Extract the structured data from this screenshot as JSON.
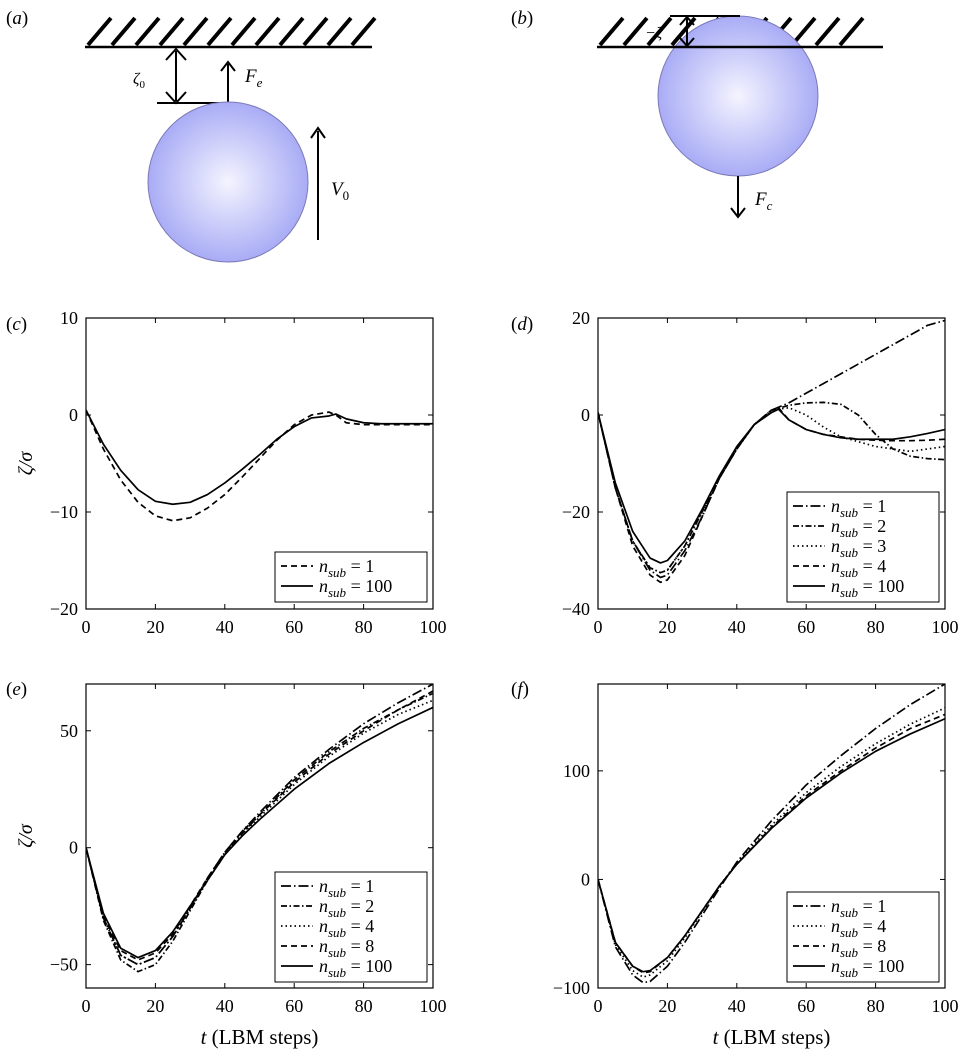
{
  "panels": {
    "a": {
      "letter": "a",
      "zeta0_label": "ζ",
      "zeta0_sub": "0",
      "force_label": "F",
      "force_sub": "e",
      "velocity_label": "V",
      "velocity_sub": "0"
    },
    "b": {
      "letter": "b",
      "zeta_label": "−ζ",
      "force_label": "F",
      "force_sub": "c"
    }
  },
  "common": {
    "xlabel_var": "t",
    "xlabel_unit": "(LBM steps)",
    "ylabel": "ζ/σ",
    "legend_var": "n",
    "legend_sub": "sub",
    "colors": {
      "line": "#000000",
      "sphere_center": "#f4f4ff",
      "sphere_edge": "#a9acf5",
      "sphere_stroke": "#7a7ab8"
    }
  },
  "chart_data": [
    {
      "panel": "c",
      "type": "line",
      "xlim": [
        0,
        100
      ],
      "ylim": [
        -20,
        10
      ],
      "xticks": [
        0,
        20,
        40,
        60,
        80,
        100
      ],
      "yticks": [
        -20,
        -10,
        0,
        10
      ],
      "show_ylabel": true,
      "show_xlabel": false,
      "series": [
        {
          "name": "1",
          "style": "dashed",
          "x": [
            0,
            5,
            10,
            15,
            20,
            25,
            30,
            35,
            40,
            45,
            50,
            55,
            60,
            65,
            70,
            72,
            75,
            80,
            85,
            90,
            95,
            100
          ],
          "y": [
            0.5,
            -3.5,
            -6.7,
            -9.0,
            -10.4,
            -10.9,
            -10.6,
            -9.6,
            -8.2,
            -6.4,
            -4.5,
            -2.6,
            -1.0,
            0.0,
            0.3,
            0.0,
            -0.8,
            -1.0,
            -1.0,
            -1.0,
            -1.0,
            -1.0
          ]
        },
        {
          "name": "100",
          "style": "solid",
          "x": [
            0,
            5,
            10,
            15,
            20,
            25,
            30,
            35,
            40,
            45,
            50,
            55,
            60,
            65,
            70,
            72,
            75,
            80,
            85,
            90,
            95,
            100
          ],
          "y": [
            0.5,
            -3.0,
            -5.7,
            -7.7,
            -8.9,
            -9.2,
            -9.0,
            -8.2,
            -7.0,
            -5.6,
            -4.1,
            -2.5,
            -1.2,
            -0.3,
            -0.1,
            0.1,
            -0.4,
            -0.8,
            -0.9,
            -0.9,
            -0.9,
            -0.9
          ]
        }
      ]
    },
    {
      "panel": "d",
      "type": "line",
      "xlim": [
        0,
        100
      ],
      "ylim": [
        -40,
        20
      ],
      "xticks": [
        0,
        20,
        40,
        60,
        80,
        100
      ],
      "yticks": [
        -40,
        -20,
        0,
        20
      ],
      "show_ylabel": false,
      "show_xlabel": false,
      "series": [
        {
          "name": "1",
          "style": "dashdot_long",
          "x": [
            0,
            5,
            10,
            15,
            18,
            20,
            25,
            30,
            35,
            40,
            45,
            50,
            55,
            60,
            65,
            70,
            75,
            80,
            85,
            90,
            95,
            100
          ],
          "y": [
            0.5,
            -15,
            -26,
            -32,
            -33.5,
            -33,
            -28,
            -21,
            -13,
            -7,
            -2,
            1,
            2.5,
            4.5,
            6.5,
            8.5,
            10.5,
            12.5,
            14.5,
            16.5,
            18.5,
            19.5
          ]
        },
        {
          "name": "2",
          "style": "dashdot",
          "x": [
            0,
            5,
            10,
            15,
            18,
            20,
            25,
            30,
            35,
            40,
            45,
            50,
            55,
            60,
            65,
            70,
            75,
            80,
            85,
            90,
            95,
            100
          ],
          "y": [
            0.5,
            -15,
            -26,
            -31.5,
            -32.5,
            -32,
            -27,
            -20,
            -13,
            -7,
            -2,
            1,
            2,
            2.5,
            2.6,
            2.2,
            0,
            -4,
            -7,
            -8.5,
            -9,
            -9.2
          ]
        },
        {
          "name": "3",
          "style": "dotted",
          "x": [
            0,
            5,
            10,
            15,
            18,
            20,
            25,
            30,
            35,
            40,
            45,
            50,
            55,
            60,
            65,
            70,
            75,
            80,
            85,
            90,
            95,
            100
          ],
          "y": [
            0.5,
            -15,
            -26,
            -31.5,
            -32.5,
            -32,
            -27,
            -20,
            -13,
            -7,
            -2,
            1,
            1.5,
            0,
            -2.5,
            -4.5,
            -5.5,
            -6.5,
            -7,
            -7.5,
            -7,
            -6.5
          ]
        },
        {
          "name": "4",
          "style": "dashed",
          "x": [
            0,
            5,
            10,
            15,
            18,
            20,
            25,
            30,
            35,
            40,
            45,
            50,
            52,
            55,
            60,
            65,
            70,
            75,
            80,
            85,
            90,
            95,
            100
          ],
          "y": [
            0.5,
            -15,
            -27,
            -33,
            -34.5,
            -34,
            -29,
            -21,
            -13,
            -7,
            -2,
            1,
            1.5,
            -1,
            -3,
            -4,
            -4.5,
            -5,
            -5.2,
            -5.3,
            -5.3,
            -5.2,
            -5
          ]
        },
        {
          "name": "100",
          "style": "solid",
          "x": [
            0,
            5,
            10,
            15,
            18,
            20,
            25,
            30,
            35,
            40,
            45,
            50,
            52,
            55,
            60,
            65,
            70,
            75,
            80,
            85,
            90,
            95,
            100
          ],
          "y": [
            0.5,
            -14,
            -24,
            -29.5,
            -30.5,
            -30,
            -26,
            -19.5,
            -12.5,
            -6.5,
            -2,
            0.5,
            1.2,
            -1,
            -3,
            -4,
            -4.7,
            -5,
            -5,
            -5,
            -4.5,
            -3.8,
            -3
          ]
        }
      ]
    },
    {
      "panel": "e",
      "type": "line",
      "xlim": [
        0,
        100
      ],
      "ylim": [
        -60,
        70
      ],
      "xticks": [
        0,
        20,
        40,
        60,
        80,
        100
      ],
      "yticks": [
        -50,
        0,
        50
      ],
      "show_ylabel": true,
      "show_xlabel": true,
      "series": [
        {
          "name": "1",
          "style": "dashdot_long",
          "x": [
            0,
            5,
            10,
            15,
            20,
            25,
            30,
            35,
            40,
            45,
            50,
            60,
            70,
            80,
            90,
            100
          ],
          "y": [
            0,
            -30,
            -46,
            -50,
            -47,
            -38,
            -26,
            -13,
            -2,
            7,
            15,
            30,
            42,
            53,
            62,
            70
          ]
        },
        {
          "name": "2",
          "style": "dashdot",
          "x": [
            0,
            5,
            10,
            15,
            20,
            25,
            30,
            35,
            40,
            45,
            50,
            60,
            70,
            80,
            90,
            100
          ],
          "y": [
            0,
            -31,
            -48,
            -53,
            -50,
            -40,
            -27,
            -14,
            -3,
            6,
            14,
            29,
            41,
            51,
            59,
            66
          ]
        },
        {
          "name": "4",
          "style": "dotted",
          "x": [
            0,
            5,
            10,
            15,
            20,
            25,
            30,
            35,
            40,
            45,
            50,
            60,
            70,
            80,
            90,
            100
          ],
          "y": [
            0,
            -30,
            -46,
            -50,
            -47,
            -38,
            -26,
            -14,
            -3,
            6,
            13,
            27,
            39,
            49,
            57,
            63
          ]
        },
        {
          "name": "8",
          "style": "dashed",
          "x": [
            0,
            5,
            10,
            15,
            20,
            25,
            30,
            35,
            40,
            45,
            50,
            60,
            70,
            80,
            90,
            100
          ],
          "y": [
            0,
            -29,
            -44,
            -48,
            -45,
            -37,
            -25,
            -13,
            -2,
            7,
            14,
            28,
            40,
            50,
            59,
            67
          ]
        },
        {
          "name": "100",
          "style": "solid",
          "x": [
            0,
            5,
            10,
            15,
            20,
            25,
            30,
            35,
            40,
            45,
            50,
            60,
            70,
            80,
            90,
            100
          ],
          "y": [
            0,
            -28,
            -43,
            -47,
            -44,
            -36,
            -25,
            -14,
            -3,
            5,
            12,
            25,
            36,
            45,
            53,
            60
          ]
        }
      ]
    },
    {
      "panel": "f",
      "type": "line",
      "xlim": [
        0,
        100
      ],
      "ylim": [
        -100,
        180
      ],
      "xticks": [
        0,
        20,
        40,
        60,
        80,
        100
      ],
      "yticks": [
        -100,
        0,
        100
      ],
      "show_ylabel": false,
      "show_xlabel": true,
      "series": [
        {
          "name": "1",
          "style": "dashdot_long",
          "x": [
            0,
            5,
            10,
            13,
            15,
            20,
            25,
            30,
            35,
            40,
            50,
            60,
            70,
            80,
            90,
            100
          ],
          "y": [
            0,
            -62,
            -88,
            -95,
            -94,
            -80,
            -58,
            -33,
            -8,
            16,
            54,
            87,
            114,
            139,
            161,
            180
          ]
        },
        {
          "name": "4",
          "style": "dotted",
          "x": [
            0,
            5,
            10,
            13,
            15,
            20,
            25,
            30,
            35,
            40,
            50,
            60,
            70,
            80,
            90,
            100
          ],
          "y": [
            0,
            -60,
            -84,
            -90,
            -88,
            -75,
            -54,
            -30,
            -6,
            15,
            50,
            80,
            104,
            125,
            143,
            158
          ]
        },
        {
          "name": "8",
          "style": "dashed",
          "x": [
            0,
            5,
            10,
            13,
            15,
            20,
            25,
            30,
            35,
            40,
            50,
            60,
            70,
            80,
            90,
            100
          ],
          "y": [
            0,
            -58,
            -80,
            -86,
            -85,
            -72,
            -52,
            -29,
            -6,
            14,
            48,
            77,
            100,
            121,
            139,
            152
          ]
        },
        {
          "name": "100",
          "style": "solid",
          "x": [
            0,
            5,
            10,
            13,
            15,
            20,
            25,
            30,
            35,
            40,
            50,
            60,
            70,
            80,
            90,
            100
          ],
          "y": [
            0,
            -58,
            -80,
            -85,
            -84,
            -72,
            -52,
            -29,
            -6,
            14,
            47,
            75,
            98,
            118,
            134,
            148
          ]
        }
      ]
    }
  ]
}
